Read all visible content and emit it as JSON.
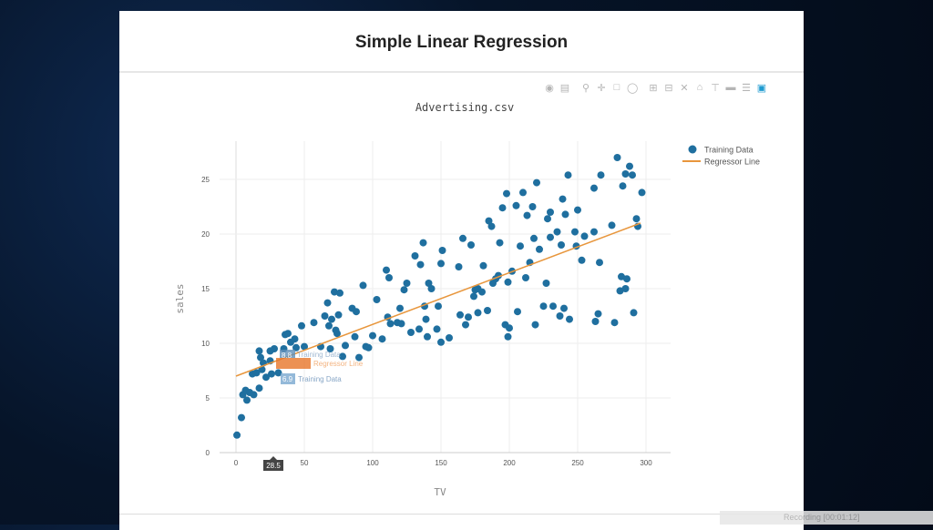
{
  "page": {
    "title": "Simple Linear Regression"
  },
  "toolbar": {
    "icons": [
      "camera-icon",
      "save-icon",
      "zoom-icon",
      "pan-icon",
      "box-select-icon",
      "lasso-icon",
      "zoom-in-icon",
      "zoom-out-icon",
      "autoscale-icon",
      "home-icon",
      "spike-lines-icon",
      "hover-closest-icon",
      "hover-compare-icon",
      "plotly-logo-icon"
    ]
  },
  "hover": {
    "x_label": "28.5",
    "labels": [
      {
        "value": "8.8",
        "name": "Training Data"
      },
      {
        "value": "",
        "name": "Regressor Line"
      },
      {
        "value": "6.9",
        "name": "Training Data"
      }
    ]
  },
  "status_bar": {
    "text": "Recording [00:01:12]"
  },
  "chart_data": {
    "type": "scatter",
    "title": "Advertising.csv",
    "xlabel": "TV",
    "ylabel": "sales",
    "xlim": [
      -12,
      318
    ],
    "ylim": [
      0,
      28.5
    ],
    "xticks": [
      0,
      50,
      100,
      150,
      200,
      250,
      300
    ],
    "yticks": [
      0,
      5,
      10,
      15,
      20,
      25
    ],
    "grid": true,
    "legend": "top-right",
    "colors": {
      "scatter": "#1f6f9f",
      "line": "#e8963c"
    },
    "series": [
      {
        "name": "Training Data",
        "mode": "markers",
        "points": [
          [
            0.7,
            1.6
          ],
          [
            4,
            3.2
          ],
          [
            5,
            5.3
          ],
          [
            7,
            5.7
          ],
          [
            8,
            4.8
          ],
          [
            10,
            5.5
          ],
          [
            12,
            7.2
          ],
          [
            13,
            5.3
          ],
          [
            15,
            7.3
          ],
          [
            17,
            5.9
          ],
          [
            17,
            9.3
          ],
          [
            18,
            8.7
          ],
          [
            19,
            7.6
          ],
          [
            20,
            8.2
          ],
          [
            22,
            6.9
          ],
          [
            25,
            9.3
          ],
          [
            25,
            8.4
          ],
          [
            26,
            7.2
          ],
          [
            28,
            9.5
          ],
          [
            31,
            7.3
          ],
          [
            35,
            9.5
          ],
          [
            36,
            10.8
          ],
          [
            38,
            10.9
          ],
          [
            40,
            10.1
          ],
          [
            43,
            10.4
          ],
          [
            44,
            9.6
          ],
          [
            48,
            11.6
          ],
          [
            50,
            9.7
          ],
          [
            57,
            11.9
          ],
          [
            62,
            9.7
          ],
          [
            65,
            12.5
          ],
          [
            67,
            13.7
          ],
          [
            68,
            11.6
          ],
          [
            69,
            9.5
          ],
          [
            70,
            12.2
          ],
          [
            72,
            14.7
          ],
          [
            73,
            11.2
          ],
          [
            74,
            10.9
          ],
          [
            75,
            12.6
          ],
          [
            76,
            14.6
          ],
          [
            78,
            8.8
          ],
          [
            80,
            9.8
          ],
          [
            85,
            13.2
          ],
          [
            87,
            10.6
          ],
          [
            88,
            12.9
          ],
          [
            90,
            8.7
          ],
          [
            93,
            15.3
          ],
          [
            95,
            9.7
          ],
          [
            97,
            9.6
          ],
          [
            100,
            10.7
          ],
          [
            103,
            14
          ],
          [
            107,
            10.4
          ],
          [
            110,
            16.7
          ],
          [
            111,
            12.4
          ],
          [
            112,
            16
          ],
          [
            113,
            11.8
          ],
          [
            118,
            11.9
          ],
          [
            120,
            13.2
          ],
          [
            121,
            11.8
          ],
          [
            123,
            14.9
          ],
          [
            125,
            15.5
          ],
          [
            128,
            11
          ],
          [
            131,
            18
          ],
          [
            134,
            11.3
          ],
          [
            135,
            17.2
          ],
          [
            137,
            19.2
          ],
          [
            138,
            13.4
          ],
          [
            139,
            12.2
          ],
          [
            140,
            10.6
          ],
          [
            141,
            15.5
          ],
          [
            143,
            15
          ],
          [
            147,
            11.3
          ],
          [
            148,
            13.4
          ],
          [
            150,
            17.3
          ],
          [
            150,
            10.1
          ],
          [
            151,
            18.5
          ],
          [
            156,
            10.5
          ],
          [
            163,
            17
          ],
          [
            164,
            12.6
          ],
          [
            166,
            19.6
          ],
          [
            168,
            11.7
          ],
          [
            170,
            12.4
          ],
          [
            172,
            19
          ],
          [
            174,
            14.3
          ],
          [
            175,
            14.9
          ],
          [
            177,
            15
          ],
          [
            177,
            12.8
          ],
          [
            180,
            14.7
          ],
          [
            181,
            17.1
          ],
          [
            184,
            13
          ],
          [
            185,
            21.2
          ],
          [
            187,
            20.7
          ],
          [
            188,
            15.5
          ],
          [
            190,
            15.9
          ],
          [
            192,
            16.2
          ],
          [
            193,
            19.2
          ],
          [
            195,
            22.4
          ],
          [
            197,
            11.7
          ],
          [
            198,
            23.7
          ],
          [
            199,
            10.6
          ],
          [
            199,
            15.6
          ],
          [
            200,
            11.4
          ],
          [
            202,
            16.6
          ],
          [
            205,
            22.6
          ],
          [
            206,
            12.9
          ],
          [
            208,
            18.9
          ],
          [
            210,
            23.8
          ],
          [
            212,
            16
          ],
          [
            213,
            21.7
          ],
          [
            215,
            17.4
          ],
          [
            217,
            22.5
          ],
          [
            218,
            19.6
          ],
          [
            219,
            11.7
          ],
          [
            220,
            24.7
          ],
          [
            222,
            18.6
          ],
          [
            225,
            13.4
          ],
          [
            227,
            15.5
          ],
          [
            228,
            21.4
          ],
          [
            230,
            19.7
          ],
          [
            230,
            22
          ],
          [
            232,
            13.4
          ],
          [
            235,
            20.2
          ],
          [
            237,
            12.5
          ],
          [
            238,
            19
          ],
          [
            239,
            23.2
          ],
          [
            240,
            13.2
          ],
          [
            241,
            21.8
          ],
          [
            243,
            25.4
          ],
          [
            244,
            12.2
          ],
          [
            248,
            20.2
          ],
          [
            249,
            18.9
          ],
          [
            250,
            22.2
          ],
          [
            253,
            17.6
          ],
          [
            255,
            19.8
          ],
          [
            262,
            20.2
          ],
          [
            262,
            24.2
          ],
          [
            263,
            12
          ],
          [
            265,
            12.7
          ],
          [
            266,
            17.4
          ],
          [
            267,
            25.4
          ],
          [
            275,
            20.8
          ],
          [
            277,
            11.9
          ],
          [
            279,
            27
          ],
          [
            281,
            14.8
          ],
          [
            282,
            16.1
          ],
          [
            283,
            24.4
          ],
          [
            285,
            15
          ],
          [
            285,
            25.5
          ],
          [
            286,
            15.9
          ],
          [
            288,
            26.2
          ],
          [
            290,
            25.4
          ],
          [
            291,
            12.8
          ],
          [
            293,
            21.4
          ],
          [
            294,
            20.7
          ],
          [
            297,
            23.8
          ]
        ]
      },
      {
        "name": "Regressor Line",
        "mode": "lines",
        "points": [
          [
            0,
            7.0
          ],
          [
            296,
            21.0
          ]
        ]
      }
    ]
  }
}
